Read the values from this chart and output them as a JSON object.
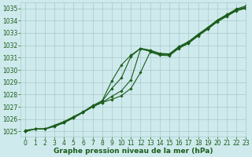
{
  "title": "Graphe pression niveau de la mer (hPa)",
  "background_color": "#ceeaec",
  "plot_bg_color": "#ceeaec",
  "grid_color": "#aacaca",
  "line_color": "#1a5c1a",
  "xlim": [
    -0.5,
    23
  ],
  "ylim": [
    1024.6,
    1035.5
  ],
  "xticks": [
    0,
    1,
    2,
    3,
    4,
    5,
    6,
    7,
    8,
    9,
    10,
    11,
    12,
    13,
    14,
    15,
    16,
    17,
    18,
    19,
    20,
    21,
    22,
    23
  ],
  "yticks": [
    1025,
    1026,
    1027,
    1028,
    1029,
    1030,
    1031,
    1032,
    1033,
    1034,
    1035
  ],
  "series": [
    [
      1025.1,
      1025.2,
      1025.2,
      1025.5,
      1025.8,
      1026.2,
      1026.6,
      1027.1,
      1027.5,
      1029.1,
      1030.4,
      1031.2,
      1031.75,
      1031.6,
      1031.35,
      1031.3,
      1031.9,
      1032.3,
      1032.9,
      1033.45,
      1034.05,
      1034.5,
      1034.95,
      1035.2
    ],
    [
      1025.05,
      1025.2,
      1025.2,
      1025.45,
      1025.75,
      1026.15,
      1026.55,
      1027.05,
      1027.45,
      1028.5,
      1029.35,
      1031.1,
      1031.75,
      1031.55,
      1031.3,
      1031.25,
      1031.85,
      1032.25,
      1032.85,
      1033.4,
      1034.0,
      1034.45,
      1034.9,
      1035.1
    ],
    [
      1025.0,
      1025.2,
      1025.2,
      1025.4,
      1025.7,
      1026.1,
      1026.55,
      1027.0,
      1027.35,
      1027.85,
      1028.3,
      1029.2,
      1031.7,
      1031.5,
      1031.25,
      1031.2,
      1031.8,
      1032.2,
      1032.8,
      1033.35,
      1033.95,
      1034.4,
      1034.85,
      1035.05
    ],
    [
      1025.0,
      1025.2,
      1025.2,
      1025.4,
      1025.7,
      1026.1,
      1026.55,
      1027.0,
      1027.35,
      1027.6,
      1027.9,
      1028.5,
      1029.8,
      1031.45,
      1031.2,
      1031.15,
      1031.75,
      1032.15,
      1032.75,
      1033.3,
      1033.9,
      1034.35,
      1034.8,
      1035.0
    ]
  ],
  "marker": "D",
  "marker_size": 1.8,
  "line_width": 0.8,
  "tick_fontsize": 5.5,
  "title_fontsize": 6.5,
  "tick_color": "#1a5c1a"
}
